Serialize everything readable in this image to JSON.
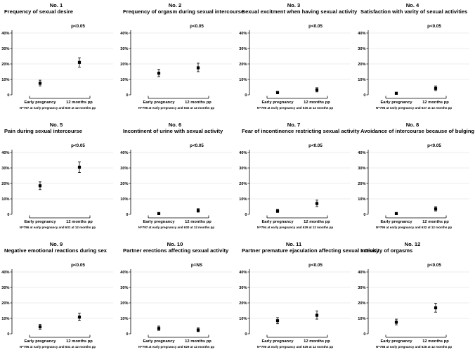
{
  "chart_data": [
    {
      "type": "errorbar",
      "number": "No. 1",
      "title": "Frequency of sexual desire",
      "categories": [
        "Early pregnancy",
        "12 months pp"
      ],
      "values": [
        7.5,
        21
      ],
      "ci_low": [
        5.8,
        18
      ],
      "ci_high": [
        9.5,
        24
      ],
      "pvalue": "p<0.05",
      "note": "N=797 at early pregnancy and 630 at 12 months pp",
      "yticks": [
        "0",
        "10%",
        "20%",
        "30%",
        "40%"
      ],
      "ylim": [
        0,
        40
      ]
    },
    {
      "type": "errorbar",
      "number": "No. 2",
      "title": "Frequency of orgasm during sexual intercourse",
      "categories": [
        "Early pregnancy",
        "12 months pp"
      ],
      "values": [
        14,
        17.5
      ],
      "ci_low": [
        11.8,
        15
      ],
      "ci_high": [
        16.5,
        20.5
      ],
      "pvalue": "p<0.05",
      "note": "N=796 at early pregnancy and 632 at 12 months pp",
      "yticks": [
        "0",
        "10%",
        "20%",
        "30%",
        "40%"
      ],
      "ylim": [
        0,
        40
      ]
    },
    {
      "type": "errorbar",
      "number": "No. 3",
      "title": "Sexual excitment when having sexual activity",
      "categories": [
        "Early pregnancy",
        "12 months pp"
      ],
      "values": [
        1.5,
        3.2
      ],
      "ci_low": [
        0.7,
        1.9
      ],
      "ci_high": [
        2.3,
        4.6
      ],
      "pvalue": "p<0.05",
      "note": "N=796 at early pregnancy and 630 at 12 months pp",
      "yticks": [
        "0",
        "10%",
        "20%",
        "30%",
        "40%"
      ],
      "ylim": [
        0,
        40
      ]
    },
    {
      "type": "errorbar",
      "number": "No. 4",
      "title": "Satisfaction with varity of sexual activities",
      "categories": [
        "Early pregnancy",
        "12 months pp"
      ],
      "values": [
        1,
        4.2
      ],
      "ci_low": [
        0.4,
        2.8
      ],
      "ci_high": [
        1.7,
        5.8
      ],
      "pvalue": "p<0.05",
      "note": "N=796 at early pregnancy and 627 at 12 months pp",
      "yticks": [
        "0",
        "10%",
        "20%",
        "30%",
        "40%"
      ],
      "ylim": [
        0,
        40
      ]
    },
    {
      "type": "errorbar",
      "number": "No. 5",
      "title": "Pain during sexual intercourse",
      "categories": [
        "Early pregnancy",
        "12 months pp"
      ],
      "values": [
        18.5,
        30.5
      ],
      "ci_low": [
        16,
        27
      ],
      "ci_high": [
        21,
        34
      ],
      "pvalue": "p<0.05",
      "note": "N=796 at early pregnancy and 631 at 12 months pp",
      "yticks": [
        "0",
        "10%",
        "20%",
        "30%",
        "40%"
      ],
      "ylim": [
        0,
        40
      ]
    },
    {
      "type": "errorbar",
      "number": "No. 6",
      "title": "Incontinent of urine with sexual activity",
      "categories": [
        "Early pregnancy",
        "12 months pp"
      ],
      "values": [
        0.5,
        2.5
      ],
      "ci_low": [
        0.1,
        1.4
      ],
      "ci_high": [
        0.9,
        3.7
      ],
      "pvalue": "p<0.05",
      "note": "N=797 at early pregnancy and 630 at 12 months pp",
      "yticks": [
        "0",
        "10%",
        "20%",
        "30%",
        "40%"
      ],
      "ylim": [
        0,
        40
      ]
    },
    {
      "type": "errorbar",
      "number": "No. 7",
      "title": "Fear of incontinence restricting sexual activity",
      "categories": [
        "Early pregnancy",
        "12 months pp"
      ],
      "values": [
        2.2,
        7
      ],
      "ci_low": [
        1.2,
        5
      ],
      "ci_high": [
        3.2,
        9.2
      ],
      "pvalue": "p<0.05",
      "note": "N=794 at early pregnancy and 629 at 12 months pp",
      "yticks": [
        "0",
        "10%",
        "20%",
        "30%",
        "40%"
      ],
      "ylim": [
        0,
        40
      ]
    },
    {
      "type": "errorbar",
      "number": "No. 8",
      "title": "Avoidance of intercourse because of bulging in the vagina",
      "categories": [
        "Early pregnancy",
        "12 months pp"
      ],
      "values": [
        0.5,
        3.5
      ],
      "ci_low": [
        0.1,
        2.2
      ],
      "ci_high": [
        0.9,
        5
      ],
      "pvalue": "p<0.05",
      "note": "N=795 at early pregnancy and 632 at 12 months pp",
      "yticks": [
        "0",
        "10%",
        "20%",
        "30%",
        "40%"
      ],
      "ylim": [
        0,
        40
      ]
    },
    {
      "type": "errorbar",
      "number": "No. 9",
      "title": "Negative emotional reactions during sex",
      "categories": [
        "Early pregnancy",
        "12 months pp"
      ],
      "values": [
        4.5,
        10.8
      ],
      "ci_low": [
        3,
        8.5
      ],
      "ci_high": [
        6.2,
        13.3
      ],
      "pvalue": "p<0.05",
      "note": "N=796 at early pregnancy and 631 at 12 months pp",
      "yticks": [
        "0",
        "10%",
        "20%",
        "30%",
        "40%"
      ],
      "ylim": [
        0,
        40
      ]
    },
    {
      "type": "errorbar",
      "number": "No. 10",
      "title": "Partner erections affecting sexual activity",
      "categories": [
        "Early pregnancy",
        "12 months pp"
      ],
      "values": [
        3.5,
        2.5
      ],
      "ci_low": [
        2.2,
        1.4
      ],
      "ci_high": [
        5,
        3.8
      ],
      "pvalue": "p=NS",
      "note": "N=795 at early pregnancy and 629 at 12 months pp",
      "yticks": [
        "0",
        "10%",
        "20%",
        "30%",
        "40%"
      ],
      "ylim": [
        0,
        40
      ]
    },
    {
      "type": "errorbar",
      "number": "No. 11",
      "title": "Partner premature ejaculation affecting sexual activity",
      "categories": [
        "Early pregnancy",
        "12 months pp"
      ],
      "values": [
        8.5,
        12
      ],
      "ci_low": [
        6.5,
        9.5
      ],
      "ci_high": [
        10.5,
        14.8
      ],
      "pvalue": "p<0.05",
      "note": "N=796 at early pregnancy and 629 at 12 months pp",
      "yticks": [
        "0",
        "10%",
        "20%",
        "30%",
        "40%"
      ],
      "ylim": [
        0,
        40
      ]
    },
    {
      "type": "errorbar",
      "number": "No. 12",
      "title": "Intensity of orgasms",
      "categories": [
        "Early pregnancy",
        "12 months pp"
      ],
      "values": [
        7.5,
        16.8
      ],
      "ci_low": [
        5.8,
        14
      ],
      "ci_high": [
        9.5,
        19.8
      ],
      "pvalue": "p<0.05",
      "note": "N=788 at early pregnancy and 628 at 12 months pp",
      "yticks": [
        "0",
        "10%",
        "20%",
        "30%",
        "40%"
      ],
      "ylim": [
        0,
        40
      ]
    }
  ]
}
